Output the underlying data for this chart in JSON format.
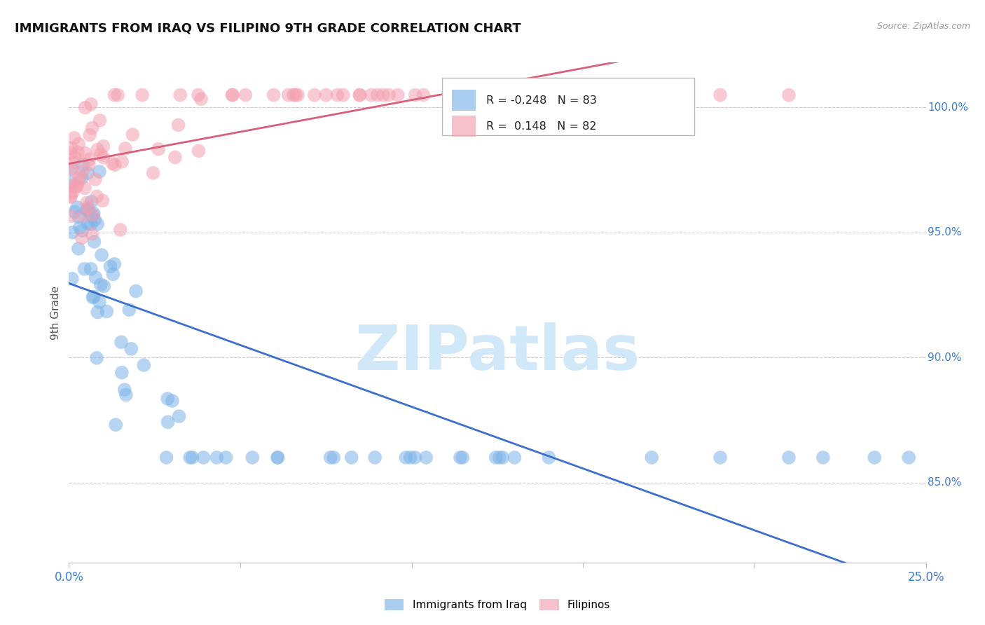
{
  "title": "IMMIGRANTS FROM IRAQ VS FILIPINO 9TH GRADE CORRELATION CHART",
  "source": "Source: ZipAtlas.com",
  "ylabel": "9th Grade",
  "ylabel_right_labels": [
    100.0,
    95.0,
    90.0,
    85.0
  ],
  "xmin": 0.0,
  "xmax": 0.25,
  "ymin": 0.818,
  "ymax": 1.018,
  "iraq_R": -0.248,
  "iraq_N": 83,
  "filipino_R": 0.148,
  "filipino_N": 82,
  "iraq_color": "#7cb4e8",
  "filipino_color": "#f4a0b0",
  "iraq_line_color": "#3b6fcc",
  "filipino_line_color": "#d9607a",
  "watermark": "ZIPatlas",
  "watermark_color": "#d0e8f8",
  "legend_iraq_label": "Immigrants from Iraq",
  "legend_filipino_label": "Filipinos"
}
